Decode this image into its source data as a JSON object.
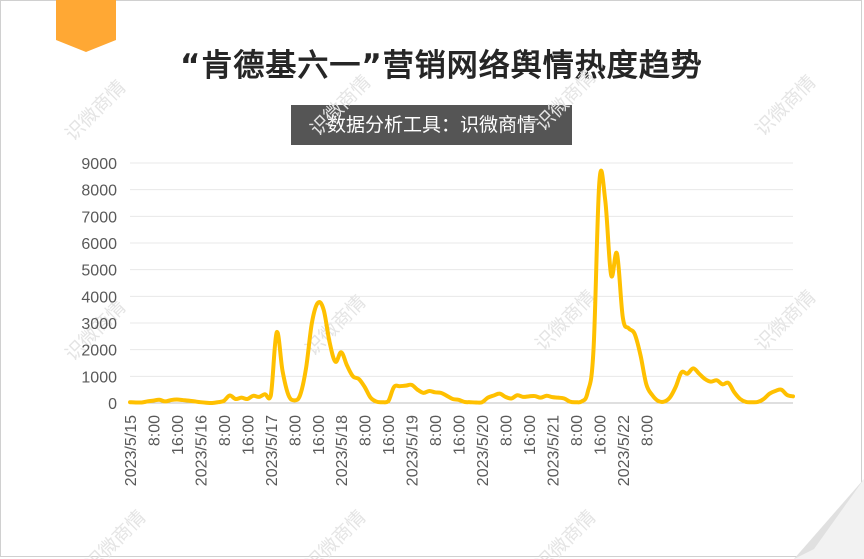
{
  "header": {
    "title": "“肯德基六一”营销网络舆情热度趋势",
    "subtitle": "数据分析工具：识微商情"
  },
  "watermark": "识微商情",
  "colors": {
    "line": "#ffc000",
    "ribbon": "#ffa834",
    "subtitle_bg": "#555555",
    "grid": "#e8e8e8",
    "axis_text": "#595959"
  },
  "chart_data": {
    "type": "line",
    "title": "“肯德基六一”营销网络舆情热度趋势",
    "xlabel": "",
    "ylabel": "",
    "ylim": [
      0,
      9000
    ],
    "yticks": [
      "0",
      "1000",
      "2000",
      "3000",
      "4000",
      "5000",
      "6000",
      "7000",
      "8000",
      "9000"
    ],
    "grid": "horizontal",
    "legend": "none",
    "x_start": "2023/5/15 0:00",
    "x_step": "2 hours",
    "xtick_labels": [
      "2023/5/15",
      "8:00",
      "16:00",
      "2023/5/16",
      "8:00",
      "16:00",
      "2023/5/17",
      "8:00",
      "16:00",
      "2023/5/18",
      "8:00",
      "16:00",
      "2023/5/19",
      "8:00",
      "16:00",
      "2023/5/20",
      "8:00",
      "16:00",
      "2023/5/21",
      "8:00",
      "16:00",
      "2023/5/22",
      "8:00"
    ],
    "values": [
      30,
      20,
      20,
      60,
      90,
      120,
      60,
      110,
      130,
      110,
      90,
      60,
      30,
      10,
      0,
      30,
      80,
      280,
      150,
      200,
      150,
      270,
      230,
      330,
      280,
      2650,
      1200,
      300,
      100,
      300,
      1300,
      3000,
      3750,
      3500,
      2300,
      1550,
      1900,
      1400,
      1000,
      900,
      600,
      200,
      50,
      30,
      60,
      600,
      630,
      650,
      680,
      500,
      380,
      450,
      400,
      380,
      270,
      150,
      120,
      40,
      30,
      20,
      30,
      200,
      280,
      350,
      230,
      170,
      290,
      230,
      250,
      260,
      200,
      270,
      220,
      200,
      170,
      50,
      30,
      60,
      400,
      2000,
      8300,
      7600,
      4800,
      5600,
      3200,
      2800,
      2600,
      1800,
      700,
      300,
      80,
      50,
      200,
      600,
      1150,
      1100,
      1300,
      1100,
      900,
      800,
      850,
      700,
      750,
      400,
      150,
      40,
      30,
      40,
      150,
      350,
      450,
      500,
      300,
      250
    ]
  }
}
